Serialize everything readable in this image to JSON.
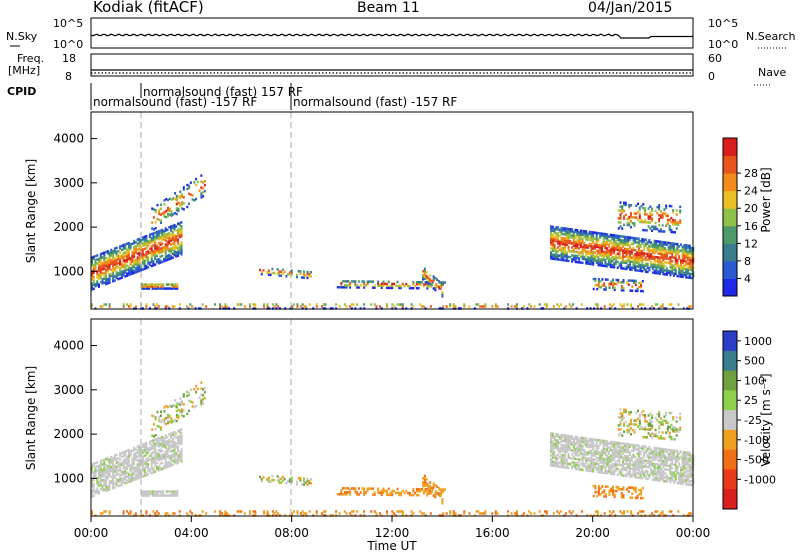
{
  "header": {
    "station": "Kodiak (fitACF)",
    "beam": "Beam 11",
    "date": "04/Jan/2015"
  },
  "top_panels": {
    "nsky": {
      "label": "N.Sky",
      "ticks": [
        "10^5",
        "10^0"
      ]
    },
    "nsearch": {
      "label": "N.Search",
      "ticks": [
        "10^5",
        "10^0"
      ]
    },
    "freq": {
      "label_line1": "Freq.",
      "label_line2": "[MHz]",
      "ticks": [
        "18",
        "8"
      ]
    },
    "nave": {
      "label": "Nave",
      "ticks": [
        "60",
        "0"
      ]
    },
    "cpid": {
      "label": "CPID",
      "segments": [
        {
          "text": "normalsound (fast) 157 RF",
          "start_hour": 1.9
        },
        {
          "text": "normalsound (fast) -157 RF",
          "start_hour": 0.0
        },
        {
          "text": "normalsound (fast) -157 RF",
          "start_hour": 7.9
        }
      ]
    }
  },
  "x_axis": {
    "label": "Time UT",
    "ticks": [
      "00:00",
      "04:00",
      "08:00",
      "12:00",
      "16:00",
      "20:00",
      "00:00"
    ]
  },
  "chart_data": [
    {
      "type": "heatmap",
      "title": "",
      "xlabel": "Time UT",
      "ylabel": "Slant Range [km]",
      "xlim": [
        0,
        24
      ],
      "ylim": [
        150,
        4600
      ],
      "yticks": [
        "1000",
        "2000",
        "3000",
        "4000"
      ],
      "colorbar": {
        "label": "Power [dB]",
        "ticks": [
          "4",
          "8",
          "12",
          "16",
          "20",
          "24",
          "28"
        ],
        "colors": [
          "#1e28e6",
          "#2a5ad2",
          "#3a7d8e",
          "#4f9a6a",
          "#8fc04a",
          "#e8c022",
          "#f28c1a",
          "#e8561e",
          "#d81e1e"
        ]
      },
      "description_series": [
        {
          "name": "",
          "hours": [
            0,
            1,
            2,
            3,
            3.6
          ],
          "range_km": [
            1000,
            1150,
            1300,
            1550,
            1800
          ]
        },
        {
          "name": "",
          "hours": [
            18.3,
            19.5,
            21,
            22.5,
            24
          ],
          "range_km": [
            1700,
            1600,
            1500,
            1350,
            1250
          ]
        }
      ]
    },
    {
      "type": "heatmap",
      "title": "",
      "xlabel": "Time UT",
      "ylabel": "Slant Range [km]",
      "xlim": [
        0,
        24
      ],
      "ylim": [
        150,
        4600
      ],
      "yticks": [
        "1000",
        "2000",
        "3000",
        "4000"
      ],
      "colorbar": {
        "label": "Velocity [m s⁻¹]",
        "ticks": [
          "1000",
          "500",
          "100",
          "25",
          "-25",
          "-100",
          "-500",
          "-1000"
        ],
        "colors": [
          "#2a3ec8",
          "#3a7d8e",
          "#6fa040",
          "#8fd04a",
          "#c8c8c8",
          "#f0a020",
          "#f07018",
          "#e83a1a",
          "#d81e1e"
        ]
      }
    }
  ]
}
